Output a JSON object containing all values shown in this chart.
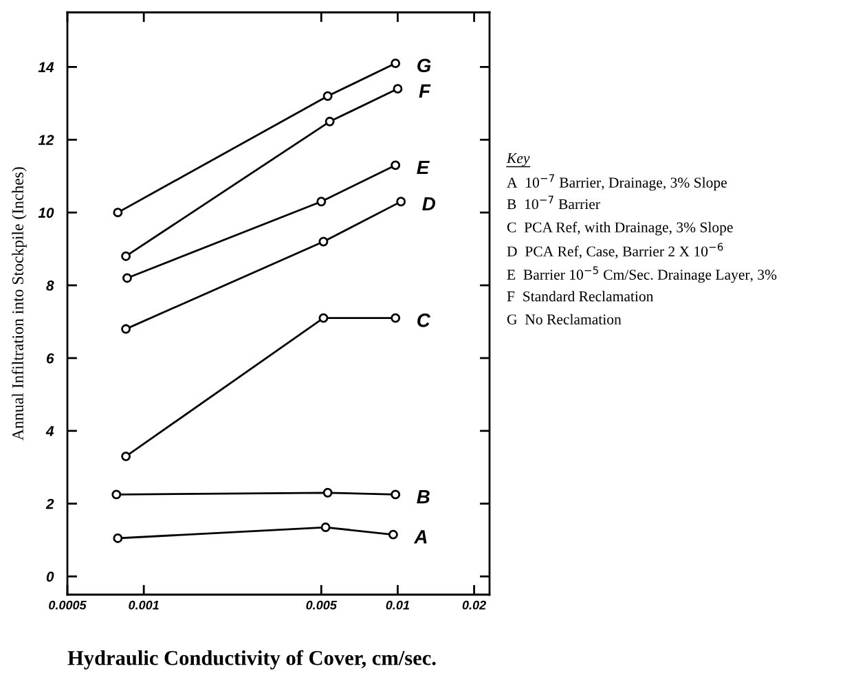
{
  "chart_data": {
    "type": "line",
    "xlabel": "Hydraulic Conductivity of Cover, cm/sec.",
    "ylabel": "Annual Infiltration into Stockpile (Inches)",
    "log": "x",
    "xlim": [
      0.0005,
      0.023
    ],
    "xticks": [
      0.0005,
      0.001,
      0.005,
      0.01,
      0.02
    ],
    "ylim": [
      -0.5,
      15.5
    ],
    "yticks": [
      0,
      2,
      4,
      6,
      8,
      10,
      12,
      14
    ],
    "marker": "circle",
    "line_style": "solid",
    "grid": false,
    "legend": "right",
    "series": [
      {
        "name": "A",
        "color": "#000000",
        "x": [
          0.00079,
          0.0052,
          0.0096
        ],
        "values": [
          1.05,
          1.35,
          1.15
        ]
      },
      {
        "name": "B",
        "color": "#000000",
        "x": [
          0.00078,
          0.0053,
          0.0098
        ],
        "values": [
          2.25,
          2.3,
          2.25
        ]
      },
      {
        "name": "C",
        "color": "#000000",
        "x": [
          0.00085,
          0.0051,
          0.0098
        ],
        "values": [
          3.3,
          7.1,
          7.1
        ]
      },
      {
        "name": "D",
        "color": "#000000",
        "x": [
          0.00085,
          0.0051,
          0.0103
        ],
        "values": [
          6.8,
          9.2,
          10.3
        ]
      },
      {
        "name": "E",
        "color": "#000000",
        "x": [
          0.00086,
          0.005,
          0.0098
        ],
        "values": [
          8.2,
          10.3,
          11.3
        ]
      },
      {
        "name": "F",
        "color": "#000000",
        "x": [
          0.00085,
          0.0054,
          0.01
        ],
        "values": [
          8.8,
          12.5,
          13.4
        ]
      },
      {
        "name": "G",
        "color": "#000000",
        "x": [
          0.00079,
          0.0053,
          0.0098
        ],
        "values": [
          10.0,
          13.2,
          14.1
        ]
      }
    ],
    "annotations": [
      "Key",
      "A  10$^{−7}$ Barrier, Drainage, 3% Slope",
      "B  10$^{−7}$ Barrier",
      "C  PCA Ref, with Drainage, 3% Slope",
      "D  PCA Ref, Case, Barrier 2 X 10$^{−6}$",
      "E  Barrier 10$^{−5}$ Cm/Sec. Drainage Layer, 3%",
      "F  Standard Reclamation",
      "G  No Reclamation"
    ]
  }
}
